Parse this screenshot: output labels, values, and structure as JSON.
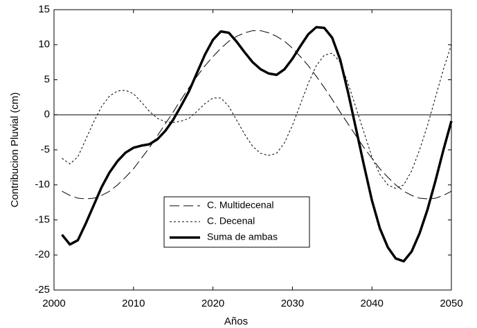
{
  "chart_data": {
    "type": "line",
    "xlabel": "Años",
    "ylabel": "Contribucion Pluvial (cm)",
    "x": [
      2001,
      2002,
      2003,
      2004,
      2005,
      2006,
      2007,
      2008,
      2009,
      2010,
      2011,
      2012,
      2013,
      2014,
      2015,
      2016,
      2017,
      2018,
      2019,
      2020,
      2021,
      2022,
      2023,
      2024,
      2025,
      2026,
      2027,
      2028,
      2029,
      2030,
      2031,
      2032,
      2033,
      2034,
      2035,
      2036,
      2037,
      2038,
      2039,
      2040,
      2041,
      2042,
      2043,
      2044,
      2045,
      2046,
      2047,
      2048,
      2049,
      2050
    ],
    "series": [
      {
        "name": "C. Multidecenal",
        "color": "#000000",
        "dash": "long",
        "width": 1,
        "values": [
          -10.9,
          -11.5,
          -11.9,
          -12,
          -11.9,
          -11.5,
          -10.9,
          -10.0,
          -8.9,
          -7.7,
          -6.2,
          -4.7,
          -3.0,
          -1.3,
          0.4,
          2.2,
          3.9,
          5.5,
          7.0,
          8.3,
          9.5,
          10.5,
          11.2,
          11.7,
          12.0,
          12.0,
          11.7,
          11.2,
          10.5,
          9.5,
          8.3,
          7.0,
          5.5,
          3.9,
          2.2,
          0.4,
          -1.3,
          -3.0,
          -4.7,
          -6.2,
          -7.7,
          -8.9,
          -10.0,
          -10.9,
          -11.5,
          -11.9,
          -12,
          -11.9,
          -11.5,
          -10.9
        ]
      },
      {
        "name": "C. Decenal",
        "color": "#000000",
        "dash": "dotted",
        "width": 1,
        "values": [
          -6.2,
          -7,
          -6,
          -3.5,
          -1,
          1.2,
          2.7,
          3.4,
          3.5,
          3,
          1.8,
          0.5,
          -0.5,
          -1,
          -1.1,
          -0.9,
          -0.5,
          0.5,
          1.6,
          2.4,
          2.4,
          1.2,
          -0.8,
          -2.8,
          -4.5,
          -5.5,
          -5.8,
          -5.5,
          -4,
          -1.5,
          1.5,
          4.5,
          7,
          8.5,
          8.8,
          7.5,
          4.5,
          1,
          -2.5,
          -6,
          -8.5,
          -10,
          -10.5,
          -10,
          -8,
          -5,
          -1.5,
          2.5,
          6.5,
          10
        ]
      },
      {
        "name": "Suma de ambas",
        "color": "#000000",
        "dash": "solid",
        "width": 3.5,
        "values": [
          -17.1,
          -18.5,
          -17.9,
          -15.5,
          -12.9,
          -10.3,
          -8.2,
          -6.6,
          -5.4,
          -4.7,
          -4.4,
          -4.2,
          -3.5,
          -2.3,
          -0.7,
          1.3,
          3.4,
          6.0,
          8.6,
          10.7,
          11.9,
          11.7,
          10.4,
          8.9,
          7.5,
          6.5,
          5.9,
          5.7,
          6.5,
          8.0,
          9.8,
          11.5,
          12.5,
          12.4,
          11.0,
          7.9,
          3.2,
          -2.0,
          -7.2,
          -12.2,
          -16.2,
          -18.9,
          -20.5,
          -20.9,
          -19.5,
          -16.9,
          -13.5,
          -9.4,
          -5.0,
          -0.9
        ]
      }
    ],
    "xlim": [
      2000,
      2050
    ],
    "xticks": [
      2000,
      2010,
      2020,
      2030,
      2040,
      2050
    ],
    "ylim": [
      -25,
      15
    ],
    "yticks": [
      -25,
      -20,
      -15,
      -10,
      -5,
      0,
      5,
      10,
      15
    ],
    "zero_line": true,
    "grid": false,
    "legend": "lower center"
  }
}
